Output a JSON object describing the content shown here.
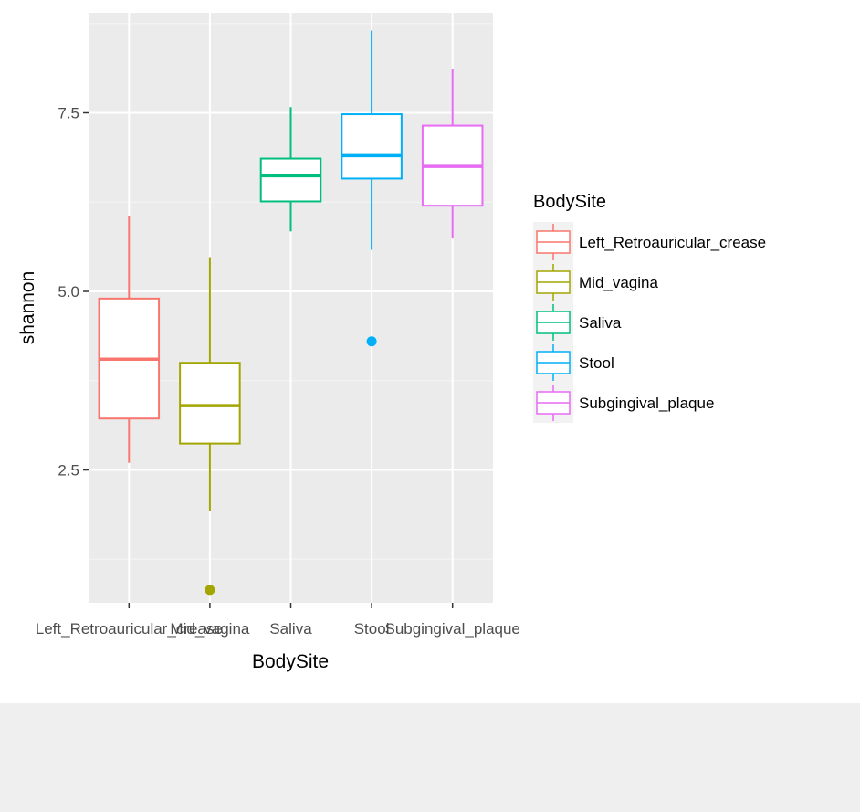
{
  "chart_data": {
    "type": "boxplot",
    "xlabel": "BodySite",
    "ylabel": "shannon",
    "categories": [
      "Left_Retroauricular_crease",
      "Mid_vagina",
      "Saliva",
      "Stool",
      "Subgingival_plaque"
    ],
    "y_ticks": [
      2.5,
      5.0,
      7.5
    ],
    "y_tick_labels": [
      "2.5",
      "5.0",
      "7.5"
    ],
    "ylim": [
      0.64,
      8.9
    ],
    "grid": true,
    "legend": {
      "title": "BodySite",
      "position": "right",
      "entries": [
        "Left_Retroauricular_crease",
        "Mid_vagina",
        "Saliva",
        "Stool",
        "Subgingival_plaque"
      ]
    },
    "boxes": [
      {
        "category": "Left_Retroauricular_crease",
        "whisker_low": 2.6,
        "q1": 3.22,
        "median": 4.05,
        "q3": 4.9,
        "whisker_high": 6.05,
        "outliers": [],
        "color": "#F8766D"
      },
      {
        "category": "Mid_vagina",
        "whisker_low": 1.93,
        "q1": 2.87,
        "median": 3.4,
        "q3": 4.0,
        "whisker_high": 5.48,
        "outliers": [
          0.82
        ],
        "color": "#A3A500"
      },
      {
        "category": "Saliva",
        "whisker_low": 5.84,
        "q1": 6.26,
        "median": 6.62,
        "q3": 6.86,
        "whisker_high": 7.58,
        "outliers": [],
        "color": "#00BF7D"
      },
      {
        "category": "Stool",
        "whisker_low": 5.58,
        "q1": 6.58,
        "median": 6.9,
        "q3": 7.48,
        "whisker_high": 8.65,
        "outliers": [
          4.3
        ],
        "color": "#00B0F6"
      },
      {
        "category": "Subgingival_plaque",
        "whisker_low": 5.74,
        "q1": 6.2,
        "median": 6.75,
        "q3": 7.32,
        "whisker_high": 8.12,
        "outliers": [],
        "color": "#E76BF3"
      }
    ]
  }
}
